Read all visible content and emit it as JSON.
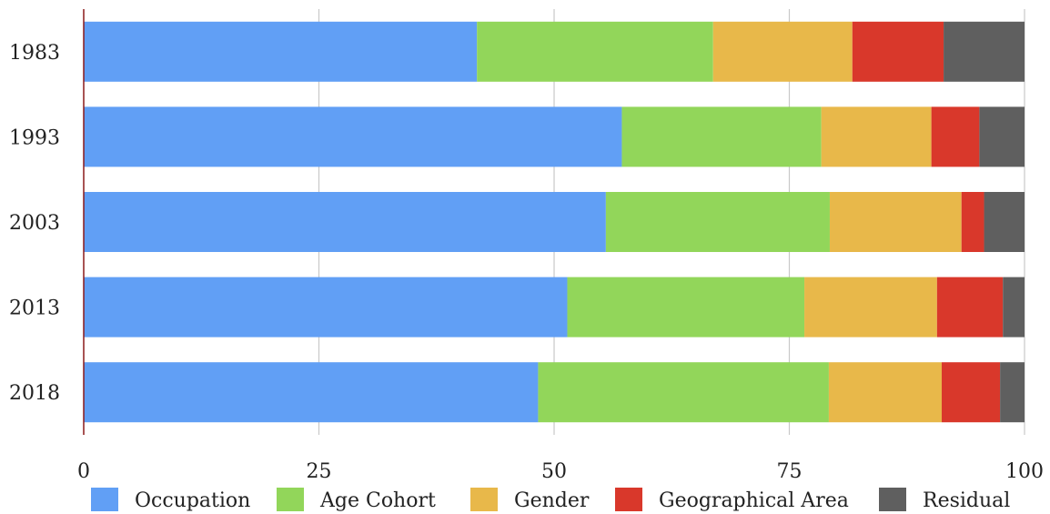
{
  "chart_data": {
    "type": "bar",
    "orientation": "horizontal",
    "stacked": true,
    "title": "",
    "xlabel": "",
    "ylabel": "",
    "xlim": [
      0,
      100
    ],
    "x_ticks": [
      "0",
      "25",
      "50",
      "75",
      "100"
    ],
    "grid": "vertical",
    "legend_position": "bottom",
    "categories": [
      "1983",
      "1993",
      "2003",
      "2013",
      "2018"
    ],
    "series": [
      {
        "name": "Occupation",
        "color": "#619ff5",
        "values": [
          41.8,
          57.2,
          55.5,
          51.4,
          48.3
        ]
      },
      {
        "name": "Age Cohort",
        "color": "#92d65a",
        "values": [
          25.1,
          21.2,
          23.8,
          25.2,
          30.9
        ]
      },
      {
        "name": "Gender",
        "color": "#e8b84a",
        "values": [
          14.8,
          11.7,
          14.0,
          14.1,
          12.0
        ]
      },
      {
        "name": "Geographical Area",
        "color": "#d9382b",
        "values": [
          9.7,
          5.1,
          2.4,
          7.0,
          6.2
        ]
      },
      {
        "name": "Residual",
        "color": "#5f5f5f",
        "values": [
          8.6,
          4.8,
          4.3,
          2.3,
          2.6
        ]
      }
    ]
  }
}
